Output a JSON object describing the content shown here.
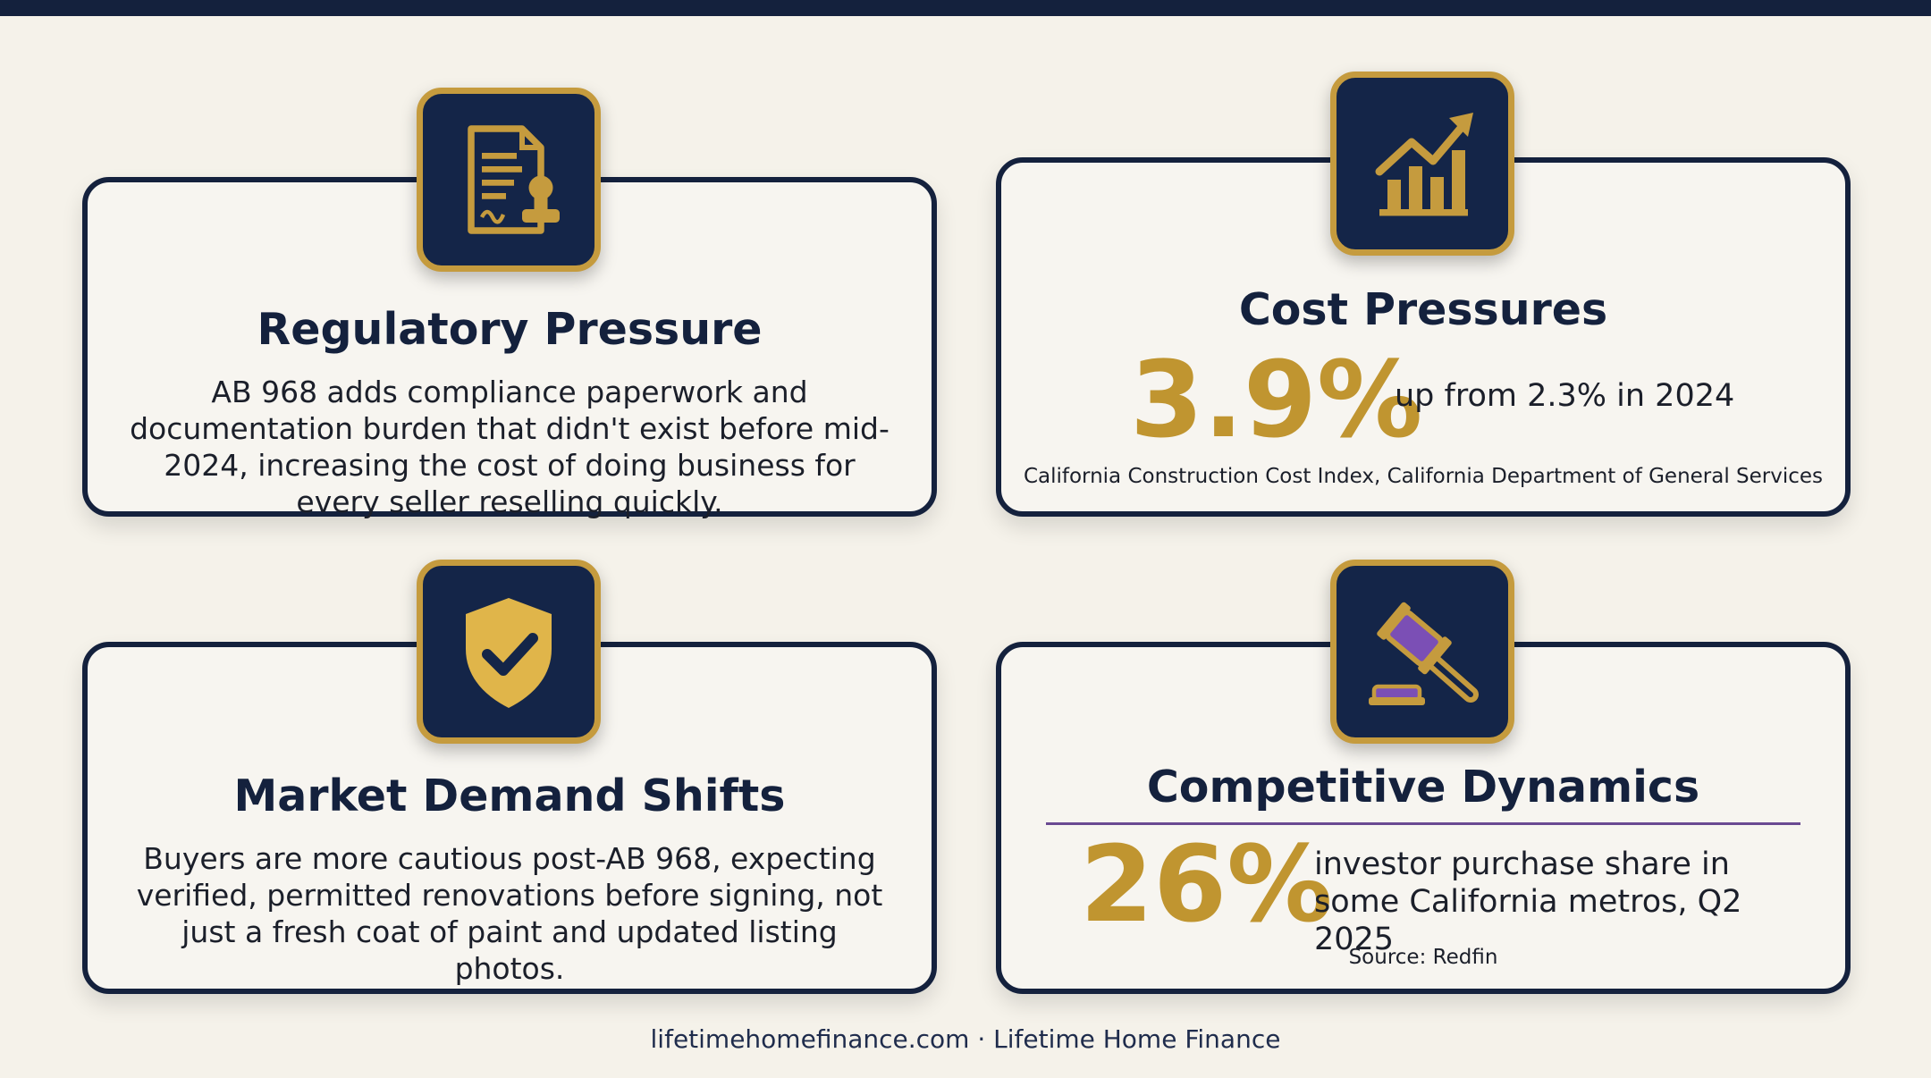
{
  "colors": {
    "navy": "#14213d",
    "gold": "#c59b3e",
    "purple": "#7b4fb5",
    "background": "#f5f2ea"
  },
  "cards": [
    {
      "icon": "document-stamp-icon",
      "title": "Regulatory Pressure",
      "body": "AB 968 adds compliance paperwork and documentation burden that didn't exist before mid-2024, increasing the cost of doing business for every seller reselling quickly."
    },
    {
      "icon": "rising-bar-chart-icon",
      "title": "Cost Pressures",
      "stat": "3.9%",
      "stat_desc": "up from 2.3% in 2024",
      "source": "California Construction Cost Index, California Department of General Services"
    },
    {
      "icon": "shield-check-icon",
      "title": "Market Demand Shifts",
      "body": "Buyers are more cautious post-AB 968, expecting verified, permitted renovations before signing, not just a fresh coat of paint and updated listing photos."
    },
    {
      "icon": "gavel-icon",
      "title": "Competitive Dynamics",
      "stat": "26%",
      "stat_desc": "investor purchase share in some California metros, Q2 2025",
      "source": "Source: Redfin"
    }
  ],
  "footer": "lifetimehomefinance.com · Lifetime Home Finance"
}
